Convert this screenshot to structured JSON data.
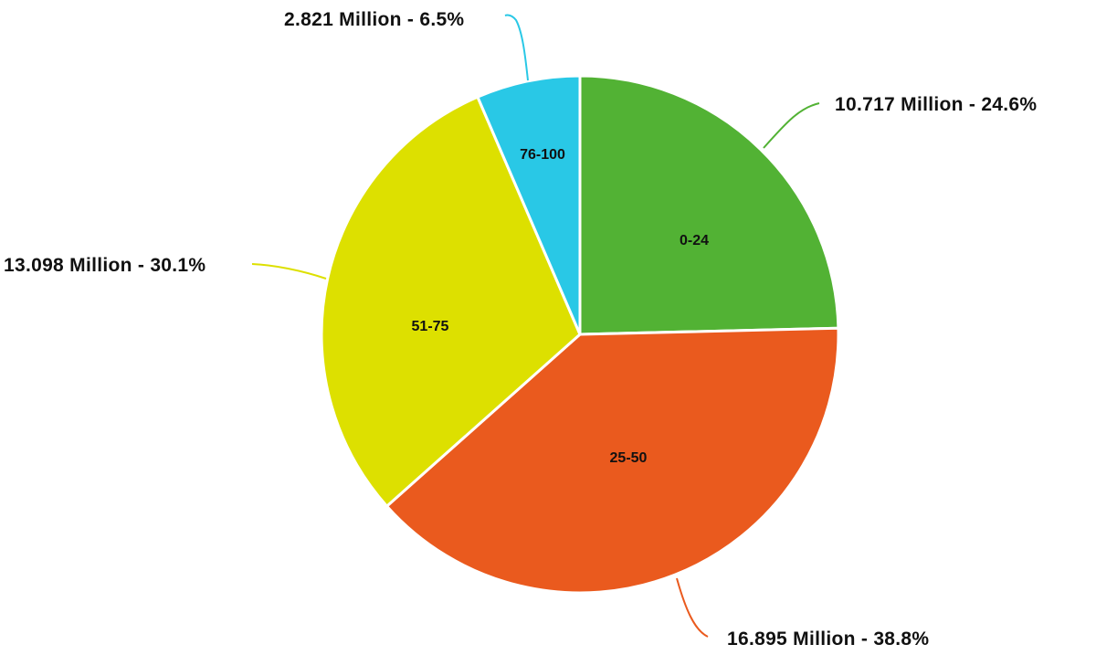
{
  "chart_data": {
    "type": "pie",
    "title": "",
    "categories": [
      "0-24",
      "25-50",
      "51-75",
      "76-100"
    ],
    "values": [
      10.717,
      16.895,
      13.098,
      2.821
    ],
    "unit": "Million",
    "percentages": [
      24.6,
      38.8,
      30.1,
      6.5
    ],
    "colors": [
      "#52b234",
      "#ea5a1e",
      "#dde000",
      "#29c8e6"
    ],
    "callout_labels": [
      "10.717 Million - 24.6%",
      "16.895 Million - 38.8%",
      "13.098 Million - 30.1%",
      "2.821 Million - 6.5%"
    ],
    "start_angle_deg": 0,
    "direction": "clockwise",
    "legend": "none"
  },
  "slices": [
    {
      "label": "0-24",
      "callout": "10.717 Million - 24.6%"
    },
    {
      "label": "25-50",
      "callout": "16.895 Million - 38.8%"
    },
    {
      "label": "51-75",
      "callout": "13.098 Million - 30.1%"
    },
    {
      "label": "76-100",
      "callout": "2.821 Million - 6.5%"
    }
  ]
}
